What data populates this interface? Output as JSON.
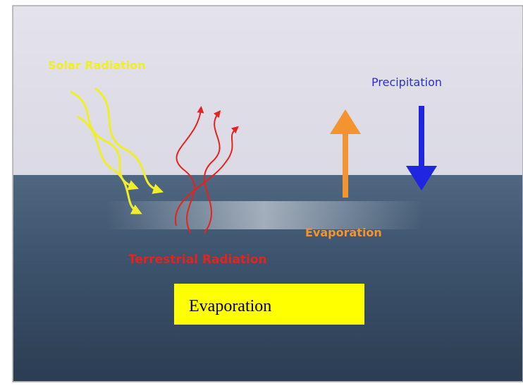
{
  "labels": {
    "solar": "Solar Radiation",
    "precipitation": "Precipitation",
    "evaporation_arrow": "Evaporation",
    "terrestrial": "Terrestrial Radiation"
  },
  "caption": "Evaporation"
}
